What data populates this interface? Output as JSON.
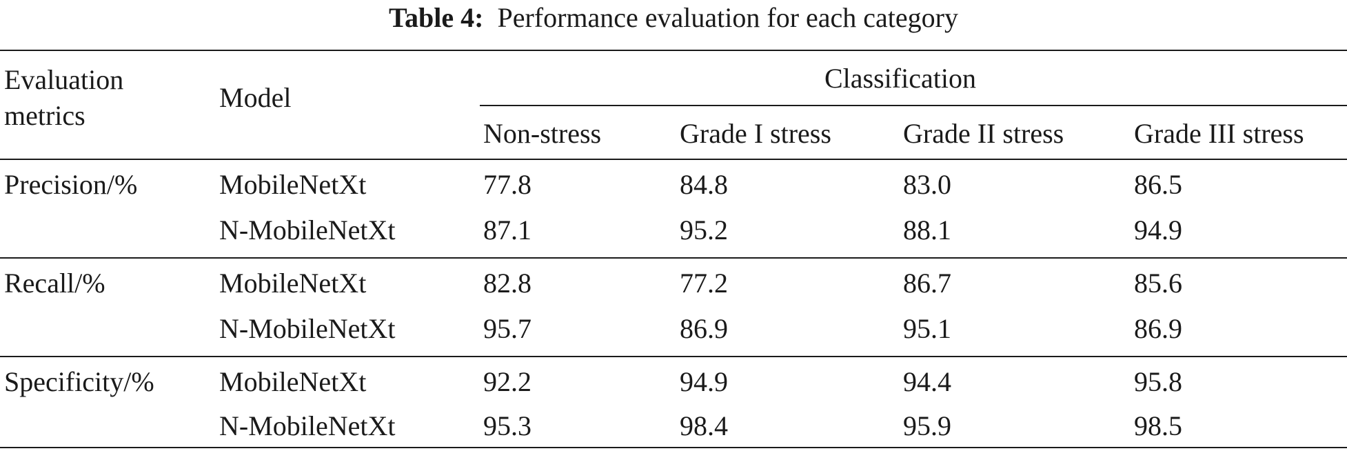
{
  "caption": {
    "label": "Table 4:",
    "text": "Performance evaluation for each category"
  },
  "header": {
    "metric_line1": "Evaluation",
    "metric_line2": "metrics",
    "model": "Model",
    "group": "Classification",
    "columns": [
      "Non-stress",
      "Grade I stress",
      "Grade II stress",
      "Grade III stress"
    ]
  },
  "rows": [
    {
      "metric": "Precision/%",
      "model": "MobileNetXt",
      "values": [
        "77.8",
        "84.8",
        "83.0",
        "86.5"
      ]
    },
    {
      "metric": "",
      "model": "N-MobileNetXt",
      "values": [
        "87.1",
        "95.2",
        "88.1",
        "94.9"
      ]
    },
    {
      "metric": "Recall/%",
      "model": "MobileNetXt",
      "values": [
        "82.8",
        "77.2",
        "86.7",
        "85.6"
      ]
    },
    {
      "metric": "",
      "model": "N-MobileNetXt",
      "values": [
        "95.7",
        "86.9",
        "95.1",
        "86.9"
      ]
    },
    {
      "metric": "Specificity/%",
      "model": "MobileNetXt",
      "values": [
        "92.2",
        "94.9",
        "94.4",
        "95.8"
      ]
    },
    {
      "metric": "",
      "model": "N-MobileNetXt",
      "values": [
        "95.3",
        "98.4",
        "95.9",
        "98.5"
      ]
    }
  ]
}
